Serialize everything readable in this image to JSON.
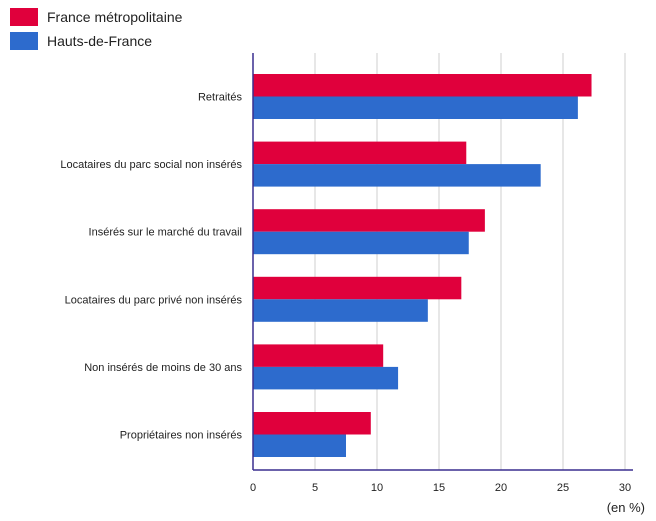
{
  "legend": [
    {
      "name": "France métropolitaine",
      "color": "#e0003c"
    },
    {
      "name": "Hauts-de-France",
      "color": "#2d6bcd"
    }
  ],
  "chart_data": {
    "type": "bar",
    "orientation": "horizontal",
    "categories": [
      "Retraités",
      "Locataires du parc social non insérés",
      "Insérés sur le marché du travail",
      "Locataires du parc privé non insérés",
      "Non insérés de moins de 30 ans",
      "Propriétaires non insérés"
    ],
    "series": [
      {
        "name": "France métropolitaine",
        "color": "#e0003c",
        "values": [
          27.3,
          17.2,
          18.7,
          16.8,
          10.5,
          9.5
        ]
      },
      {
        "name": "Hauts-de-France",
        "color": "#2d6bcd",
        "values": [
          26.2,
          23.2,
          17.4,
          14.1,
          11.7,
          7.5
        ]
      }
    ],
    "xlim": [
      0,
      30
    ],
    "xticks": [
      0,
      5,
      10,
      15,
      20,
      25,
      30
    ],
    "xunit": "(en %)",
    "grid": true,
    "legend_position": "top-left"
  }
}
